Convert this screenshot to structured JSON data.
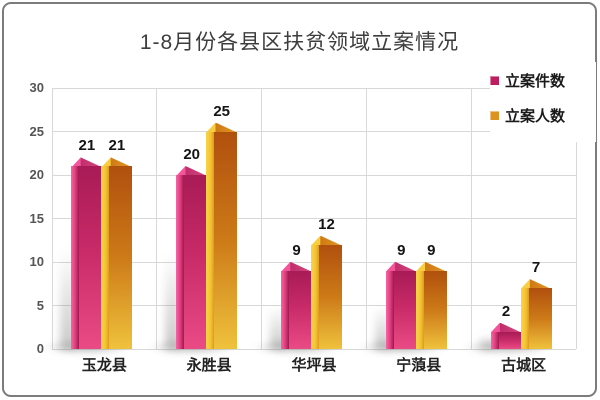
{
  "title": "1-8月份各县区扶贫领域立案情况",
  "legend": {
    "items": [
      {
        "label": "立案件数",
        "color": "#c21c60"
      },
      {
        "label": "立案人数",
        "color": "#dd9320"
      }
    ]
  },
  "y_axis": {
    "ticks": [
      "0",
      "5",
      "10",
      "15",
      "20",
      "25",
      "30"
    ]
  },
  "chart_data": {
    "type": "bar",
    "style": "3d",
    "title": "1-8月份各县区扶贫领域立案情况",
    "categories": [
      "玉龙县",
      "永胜县",
      "华坪县",
      "宁蒗县",
      "古城区"
    ],
    "series": [
      {
        "name": "立案件数",
        "color": "#c21c60",
        "values": [
          21,
          20,
          9,
          9,
          2
        ]
      },
      {
        "name": "立案人数",
        "color": "#dd9320",
        "values": [
          21,
          25,
          12,
          9,
          7
        ]
      }
    ],
    "xlabel": "",
    "ylabel": "",
    "ylim": [
      0,
      30
    ],
    "ytick_step": 5,
    "grid": true,
    "legend_position": "top-right",
    "data_labels": true
  }
}
